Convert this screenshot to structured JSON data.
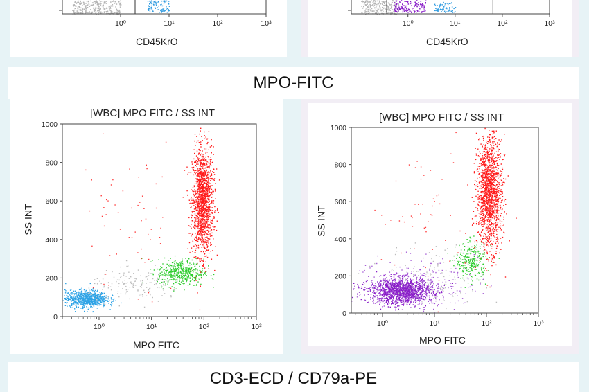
{
  "sections": {
    "top_left_xlabel": "CD45KrO",
    "top_right_xlabel": "CD45KrO",
    "mpo_title": "MPO-FITC",
    "bottom_title": "CD3-ECD / CD79a-PE"
  },
  "top_plots": [
    {
      "xticks": [
        "10⁰",
        "10¹",
        "10²",
        "10³"
      ],
      "populations": [
        {
          "name": "grey",
          "color": "#b4b4b4",
          "x_range": [
            -1.0,
            0.0
          ],
          "y_range": [
            0,
            40
          ],
          "n": 260
        },
        {
          "name": "blue",
          "color": "#2f9be0",
          "x_range": [
            0.55,
            1.0
          ],
          "y_range": [
            5,
            40
          ],
          "n": 90
        }
      ],
      "gates": [
        0.3,
        1.45
      ]
    },
    {
      "xticks": [
        "10⁰",
        "10¹",
        "10²",
        "10³"
      ],
      "populations": [
        {
          "name": "grey",
          "color": "#b4b4b4",
          "x_range": [
            -1.0,
            -0.2
          ],
          "y_range": [
            0,
            40
          ],
          "n": 220
        },
        {
          "name": "purple",
          "color": "#8a1fc9",
          "x_range": [
            -0.3,
            0.4
          ],
          "y_range": [
            5,
            40
          ],
          "n": 140
        },
        {
          "name": "blue",
          "color": "#2f9be0",
          "x_range": [
            0.55,
            1.0
          ],
          "y_range": [
            5,
            35
          ],
          "n": 60
        }
      ],
      "gates": [
        -0.45,
        1.8,
        3.0
      ]
    }
  ],
  "chart_data": [
    {
      "type": "scatter",
      "title": "[WBC] MPO FITC / SS INT",
      "xlabel": "MPO FITC",
      "ylabel": "SS INT",
      "x_scale": "log",
      "xlim": [
        -0.7,
        3.0
      ],
      "ylim": [
        0,
        1000
      ],
      "yticks": [
        0,
        200,
        400,
        600,
        800,
        1000
      ],
      "xticks": [
        "10⁰",
        "10¹",
        "10²",
        "10³"
      ],
      "populations": [
        {
          "name": "red",
          "color": "#ff1a1a",
          "center": [
            1.97,
            600
          ],
          "spread": [
            0.1,
            140
          ],
          "slope": 0.0,
          "n": 1500
        },
        {
          "name": "green",
          "color": "#2ecc2e",
          "center": [
            1.55,
            230
          ],
          "spread": [
            0.22,
            35
          ],
          "n": 450
        },
        {
          "name": "blue",
          "color": "#2ea3e6",
          "center": [
            -0.25,
            95
          ],
          "spread": [
            0.2,
            22
          ],
          "n": 800
        },
        {
          "name": "grey",
          "color": "#bdbdbd",
          "center": [
            0.7,
            160
          ],
          "spread": [
            0.45,
            40
          ],
          "n": 160
        },
        {
          "name": "red-sparse",
          "color": "#ff3b3b",
          "center": [
            0.6,
            480
          ],
          "spread": [
            0.5,
            220
          ],
          "n": 60
        }
      ]
    },
    {
      "type": "scatter",
      "title": "[WBC] MPO FITC / SS INT",
      "xlabel": "MPO FITC",
      "ylabel": "SS INT",
      "x_scale": "log",
      "xlim": [
        -0.6,
        3.0
      ],
      "ylim": [
        0,
        1000
      ],
      "yticks": [
        0,
        200,
        400,
        600,
        800,
        1000
      ],
      "xticks": [
        "10⁰",
        "10¹",
        "10²",
        "10³"
      ],
      "populations": [
        {
          "name": "red",
          "color": "#ff1a1a",
          "center": [
            2.05,
            650
          ],
          "spread": [
            0.12,
            150
          ],
          "n": 1500
        },
        {
          "name": "green",
          "color": "#2ecc2e",
          "center": [
            1.7,
            280
          ],
          "spread": [
            0.15,
            50
          ],
          "n": 260
        },
        {
          "name": "purple",
          "color": "#8a1fc9",
          "center": [
            0.35,
            120
          ],
          "spread": [
            0.3,
            35
          ],
          "n": 1400
        },
        {
          "name": "purple-sparse",
          "color": "#a760d6",
          "center": [
            0.6,
            150
          ],
          "spread": [
            0.6,
            70
          ],
          "n": 260
        },
        {
          "name": "grey",
          "color": "#bdbdbd",
          "center": [
            1.0,
            200
          ],
          "spread": [
            0.5,
            80
          ],
          "n": 120
        },
        {
          "name": "red-sparse",
          "color": "#ff3b3b",
          "center": [
            0.8,
            520
          ],
          "spread": [
            0.5,
            220
          ],
          "n": 60
        }
      ]
    }
  ]
}
